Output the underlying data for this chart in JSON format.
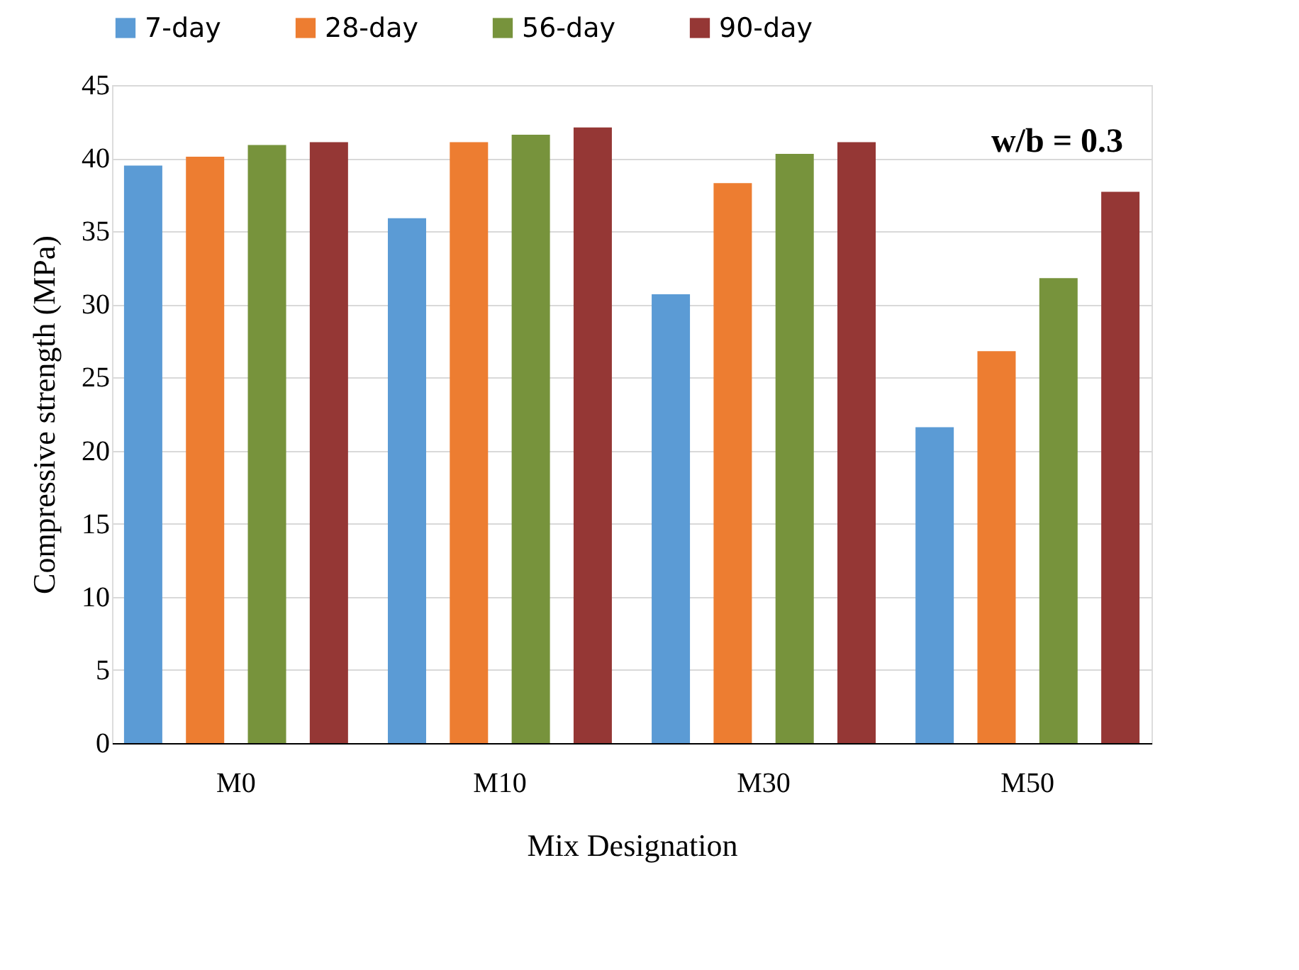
{
  "chart_data": {
    "type": "bar",
    "xlabel": "Mix Designation",
    "ylabel": "Compressive strength (MPa)",
    "categories": [
      "M0",
      "M10",
      "M30",
      "M50"
    ],
    "series": [
      {
        "name": "7-day",
        "color": "#5b9bd5",
        "values": [
          39.5,
          35.9,
          30.7,
          21.6
        ]
      },
      {
        "name": "28-day",
        "color": "#ed7d31",
        "values": [
          40.1,
          41.1,
          38.3,
          26.8
        ]
      },
      {
        "name": "56-day",
        "color": "#77933c",
        "values": [
          40.9,
          41.6,
          40.3,
          31.8
        ]
      },
      {
        "name": "90-day",
        "color": "#953735",
        "values": [
          41.1,
          42.1,
          41.1,
          37.7
        ]
      }
    ],
    "ylim": [
      0,
      45
    ],
    "yticks": [
      0,
      5,
      10,
      15,
      20,
      25,
      30,
      35,
      40,
      45
    ],
    "grid": "y",
    "legend": "top",
    "annotations": [
      "w/b = 0.3"
    ]
  }
}
